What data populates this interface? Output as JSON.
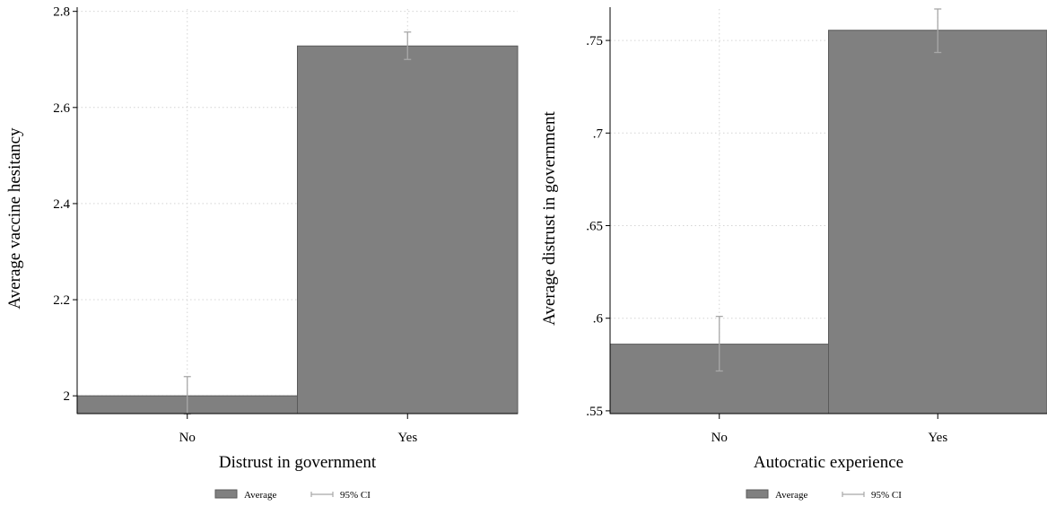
{
  "colors": {
    "bar": "#808080",
    "bar_edge": "#5a5a5a",
    "ci": "#a8a8a8",
    "grid": "#d4d4d4",
    "axis": "#000000"
  },
  "chart_data": [
    {
      "type": "bar",
      "categories": [
        "No",
        "Yes"
      ],
      "values": [
        2.0,
        2.728
      ],
      "ci_low": [
        1.962,
        2.7
      ],
      "ci_high": [
        2.04,
        2.757
      ],
      "xlabel": "Distrust in government",
      "ylabel": "Average vaccine hesitancy",
      "yticks": [
        2,
        2.2,
        2.4,
        2.6,
        2.8
      ],
      "ytick_labels": [
        "2",
        "2.2",
        "2.4",
        "2.6",
        "2.8"
      ],
      "ylim": [
        1.963,
        2.805
      ],
      "grid": true,
      "legend": {
        "position": "bottom",
        "items": [
          {
            "label": "Average",
            "kind": "bar"
          },
          {
            "label": "95% CI",
            "kind": "ci"
          }
        ]
      }
    },
    {
      "type": "bar",
      "categories": [
        "No",
        "Yes"
      ],
      "values": [
        0.586,
        0.7555
      ],
      "ci_low": [
        0.5715,
        0.7435
      ],
      "ci_high": [
        0.601,
        0.767
      ],
      "xlabel": "Autocratic experience",
      "ylabel": "Average distrust in government",
      "yticks": [
        0.55,
        0.6,
        0.65,
        0.7,
        0.75
      ],
      "ytick_labels": [
        ".55",
        ".6",
        ".65",
        ".7",
        ".75"
      ],
      "ylim": [
        0.5485,
        0.767
      ],
      "grid": true,
      "legend": {
        "position": "bottom",
        "items": [
          {
            "label": "Average",
            "kind": "bar"
          },
          {
            "label": "95% CI",
            "kind": "ci"
          }
        ]
      }
    }
  ]
}
